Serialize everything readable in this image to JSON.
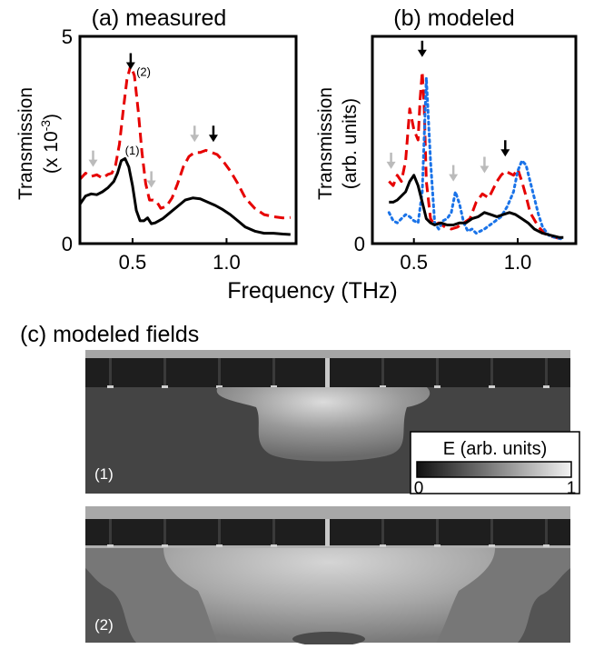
{
  "chart_data": [
    {
      "type": "line",
      "title": "(a) measured",
      "ylabel": "Transmission",
      "ylabel_unit": "(x 10",
      "ylabel_exp": "-3",
      "ylabel_close": ")",
      "xlim": [
        0.22,
        1.37
      ],
      "ylim": [
        0,
        5
      ],
      "xticks": [
        0.5,
        1.0
      ],
      "xtick_labels": [
        "0.5",
        "1.0"
      ],
      "yticks": [
        0,
        5
      ],
      "ytick_labels": [
        "0",
        "5"
      ],
      "annotations": [
        {
          "text": "(1)",
          "x": 0.46,
          "y": 2.15
        },
        {
          "text": "(2)",
          "x": 0.52,
          "y": 4.05
        }
      ],
      "arrows": [
        {
          "color": "#000000",
          "x": 0.49,
          "y": 4.2
        },
        {
          "color": "#000000",
          "x": 0.93,
          "y": 2.45
        },
        {
          "color": "#bbbbbb",
          "x": 0.29,
          "y": 1.85
        },
        {
          "color": "#bbbbbb",
          "x": 0.6,
          "y": 1.35
        },
        {
          "color": "#bbbbbb",
          "x": 0.83,
          "y": 2.45
        }
      ],
      "series": [
        {
          "color": "#e60000",
          "style": "dashed",
          "x": [
            0.22,
            0.25,
            0.28,
            0.31,
            0.34,
            0.37,
            0.39,
            0.41,
            0.43,
            0.45,
            0.47,
            0.49,
            0.51,
            0.53,
            0.55,
            0.57,
            0.59,
            0.61,
            0.63,
            0.65,
            0.68,
            0.71,
            0.74,
            0.77,
            0.8,
            0.83,
            0.86,
            0.89,
            0.92,
            0.95,
            0.98,
            1.02,
            1.06,
            1.1,
            1.15,
            1.2,
            1.25,
            1.3,
            1.34
          ],
          "y": [
            1.55,
            1.7,
            1.62,
            1.66,
            1.58,
            1.67,
            1.7,
            1.9,
            2.4,
            3.2,
            3.95,
            4.3,
            4.05,
            3.2,
            2.2,
            1.45,
            1.05,
            1.05,
            1.0,
            0.85,
            0.9,
            1.1,
            1.45,
            1.85,
            2.1,
            2.2,
            2.2,
            2.25,
            2.2,
            2.15,
            2.0,
            1.75,
            1.45,
            1.1,
            0.85,
            0.7,
            0.65,
            0.62,
            0.63
          ]
        },
        {
          "color": "#000000",
          "style": "solid",
          "x": [
            0.22,
            0.25,
            0.28,
            0.31,
            0.34,
            0.37,
            0.4,
            0.42,
            0.44,
            0.46,
            0.48,
            0.5,
            0.52,
            0.54,
            0.56,
            0.58,
            0.6,
            0.62,
            0.64,
            0.66,
            0.7,
            0.74,
            0.78,
            0.82,
            0.86,
            0.9,
            0.94,
            0.98,
            1.02,
            1.06,
            1.1,
            1.15,
            1.2,
            1.25,
            1.3,
            1.34
          ],
          "y": [
            0.95,
            1.15,
            1.2,
            1.18,
            1.25,
            1.35,
            1.5,
            1.7,
            2.0,
            2.05,
            1.85,
            1.4,
            0.8,
            0.55,
            0.55,
            0.62,
            0.48,
            0.5,
            0.55,
            0.6,
            0.75,
            0.9,
            1.05,
            1.1,
            1.08,
            1.0,
            0.92,
            0.82,
            0.7,
            0.55,
            0.4,
            0.3,
            0.25,
            0.25,
            0.23,
            0.22
          ]
        }
      ]
    },
    {
      "type": "line",
      "title": "(b) modeled",
      "ylabel": "Transmission",
      "ylabel_unit": "(arb. units)",
      "xlim": [
        0.3,
        1.28
      ],
      "ylim": [
        0,
        1
      ],
      "xticks": [
        0.5,
        1.0
      ],
      "xtick_labels": [
        "0.5",
        "1.0"
      ],
      "yticks": [
        0
      ],
      "ytick_labels": [
        "0"
      ],
      "arrows": [
        {
          "color": "#000000",
          "x": 0.54,
          "y": 0.9
        },
        {
          "color": "#000000",
          "x": 0.94,
          "y": 0.42
        },
        {
          "color": "#bbbbbb",
          "x": 0.39,
          "y": 0.36
        },
        {
          "color": "#bbbbbb",
          "x": 0.69,
          "y": 0.3
        },
        {
          "color": "#bbbbbb",
          "x": 0.84,
          "y": 0.34
        }
      ],
      "series": [
        {
          "color": "#e60000",
          "style": "dashed",
          "x": [
            0.38,
            0.4,
            0.42,
            0.44,
            0.46,
            0.48,
            0.5,
            0.52,
            0.53,
            0.54,
            0.55,
            0.56,
            0.58,
            0.6,
            0.62,
            0.65,
            0.68,
            0.71,
            0.74,
            0.77,
            0.8,
            0.83,
            0.86,
            0.88,
            0.9,
            0.92,
            0.94,
            0.96,
            0.98,
            1.0,
            1.02,
            1.04,
            1.06,
            1.1,
            1.14,
            1.18,
            1.22
          ],
          "y": [
            0.3,
            0.28,
            0.33,
            0.3,
            0.4,
            0.65,
            0.55,
            0.5,
            0.7,
            0.83,
            0.65,
            0.3,
            0.12,
            0.09,
            0.1,
            0.08,
            0.07,
            0.08,
            0.1,
            0.12,
            0.2,
            0.24,
            0.22,
            0.26,
            0.3,
            0.33,
            0.35,
            0.34,
            0.33,
            0.36,
            0.3,
            0.23,
            0.15,
            0.08,
            0.04,
            0.03,
            0.02
          ]
        },
        {
          "color": "#1a73e8",
          "style": "dotted",
          "x": [
            0.38,
            0.4,
            0.42,
            0.44,
            0.46,
            0.48,
            0.5,
            0.52,
            0.54,
            0.56,
            0.58,
            0.6,
            0.62,
            0.64,
            0.66,
            0.68,
            0.7,
            0.72,
            0.74,
            0.76,
            0.78,
            0.8,
            0.84,
            0.88,
            0.92,
            0.95,
            0.98,
            1.0,
            1.02,
            1.04,
            1.06,
            1.08,
            1.1,
            1.12,
            1.15,
            1.18,
            1.22
          ],
          "y": [
            0.15,
            0.11,
            0.1,
            0.12,
            0.14,
            0.13,
            0.11,
            0.1,
            0.25,
            0.8,
            0.4,
            0.1,
            0.07,
            0.11,
            0.12,
            0.15,
            0.25,
            0.19,
            0.1,
            0.06,
            0.07,
            0.05,
            0.07,
            0.1,
            0.13,
            0.18,
            0.25,
            0.35,
            0.4,
            0.38,
            0.3,
            0.22,
            0.14,
            0.08,
            0.04,
            0.03,
            0.02
          ]
        },
        {
          "color": "#000000",
          "style": "solid",
          "x": [
            0.38,
            0.4,
            0.42,
            0.44,
            0.46,
            0.48,
            0.5,
            0.52,
            0.54,
            0.56,
            0.58,
            0.6,
            0.63,
            0.66,
            0.69,
            0.72,
            0.75,
            0.78,
            0.81,
            0.84,
            0.87,
            0.9,
            0.93,
            0.96,
            0.99,
            1.02,
            1.05,
            1.08,
            1.12,
            1.16,
            1.2,
            1.22
          ],
          "y": [
            0.2,
            0.2,
            0.21,
            0.23,
            0.25,
            0.3,
            0.33,
            0.28,
            0.2,
            0.12,
            0.1,
            0.09,
            0.1,
            0.09,
            0.09,
            0.1,
            0.1,
            0.12,
            0.13,
            0.15,
            0.14,
            0.13,
            0.14,
            0.15,
            0.14,
            0.12,
            0.1,
            0.07,
            0.05,
            0.04,
            0.03,
            0.03
          ]
        }
      ]
    }
  ],
  "shared": {
    "xlabel": "Frequency (THz)",
    "fields_title": "(c) modeled fields",
    "field1_label": "(1)",
    "field2_label": "(2)",
    "colorbar_title": "E (arb. units)",
    "colorbar_min": "0",
    "colorbar_max": "1"
  }
}
